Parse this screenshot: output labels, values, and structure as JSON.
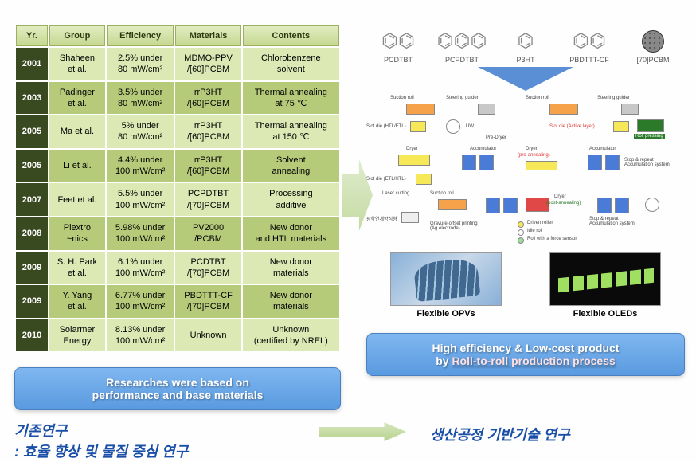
{
  "table": {
    "headers": [
      "Yr.",
      "Group",
      "Efficiency",
      "Materials",
      "Contents"
    ],
    "rows": [
      {
        "year": "2001",
        "group": "Shaheen\net al.",
        "eff": "2.5% under\n80 mW/cm²",
        "mat": "MDMO-PPV\n/[60]PCBM",
        "cont": "Chlorobenzene\nsolvent"
      },
      {
        "year": "2003",
        "group": "Padinger\net al.",
        "eff": "3.5% under\n80 mW/cm²",
        "mat": "rrP3HT\n/[60]PCBM",
        "cont": "Thermal annealing\nat 75 ℃"
      },
      {
        "year": "2005",
        "group": "Ma et al.",
        "eff": "5% under\n80 mW/cm²",
        "mat": "rrP3HT\n/[60]PCBM",
        "cont": "Thermal annealing\nat 150 ℃"
      },
      {
        "year": "2005",
        "group": "Li et al.",
        "eff": "4.4% under\n100 mW/cm²",
        "mat": "rrP3HT\n/[60]PCBM",
        "cont": "Solvent\nannealing"
      },
      {
        "year": "2007",
        "group": "Feet et al.",
        "eff": "5.5% under\n100 mW/cm²",
        "mat": "PCPDTBT\n/[70]PCBM",
        "cont": "Processing\nadditive"
      },
      {
        "year": "2008",
        "group": "Plextro\n~nics",
        "eff": "5.98% under\n100 mW/cm²",
        "mat": "PV2000\n/PCBM",
        "cont": "New donor\nand HTL materials"
      },
      {
        "year": "2009",
        "group": "S. H. Park\net al.",
        "eff": "6.1% under\n100 mW/cm²",
        "mat": "PCDTBT\n/[70]PCBM",
        "cont": "New donor\nmaterials"
      },
      {
        "year": "2009",
        "group": "Y. Yang\net al.",
        "eff": "6.77% under\n100 mW/cm²",
        "mat": "PBDTTT-CF\n/[70]PCBM",
        "cont": "New donor\nmaterials"
      },
      {
        "year": "2010",
        "group": "Solarmer\nEnergy",
        "eff": "8.13% under\n100 mW/cm²",
        "mat": "Unknown",
        "cont": "Unknown\n(certified by NREL)"
      }
    ],
    "header_bg": "#dce9b4",
    "row_light_bg": "#dce9b4",
    "row_dark_bg": "#b5cb7a",
    "year_bg": "#3a4a20"
  },
  "chemicals": [
    "PCDTBT",
    "PCPDTBT",
    "P3HT",
    "PBDTTT-CF",
    "[70]PCBM"
  ],
  "blue_box_left": {
    "line1": "Researches were based on",
    "line2": "performance and base materials"
  },
  "blue_box_right": {
    "line1": "High efficiency & Low-cost product",
    "line2_prefix": "by ",
    "line2_underline": "Roll-to-roll production process"
  },
  "korean_left": {
    "line1": "기존연구",
    "line2": ": 효율 향상 및 물질 중심 연구"
  },
  "korean_right": "생산공정 기반기술 연구",
  "img_labels": {
    "opv": "Flexible OPVs",
    "oled": "Flexible OLEDs"
  },
  "process_labels": {
    "suction_roll": "Suction roll",
    "steering_guider": "Steering guider",
    "slot_die_htl": "Slot die (HTL/ETL)",
    "slot_die_active": "Slot die (Active layer)",
    "uw": "UW",
    "pre_dryer": "Pre-Dryer",
    "roll_pressing": "Roll pressing",
    "dryer": "Dryer",
    "pre_annealing": "(pre-annealing)",
    "post_annealing": "(post-annealing)",
    "accumulator": "Accumulator",
    "stop_repeat": "Stop & repeat\nAccumulation system",
    "slot_die_etl": "Slot die (ETL/HTL)",
    "laser_cutting": "Laser cutting",
    "gravure": "Gravure-offset printing\n(Ag electrode)",
    "legend_driven": "Driven roller",
    "legend_idle": "Idle roll",
    "legend_force": "Roll with a force sensor",
    "module_kr": "광학연계방식형"
  },
  "colors": {
    "blue_box_grad_top": "#7fb7f0",
    "blue_box_grad_bot": "#5a9ae0",
    "korean_text": "#1a4fa8",
    "arrow_fill": "#b7d28c",
    "triangle": "#5a8fd6"
  }
}
